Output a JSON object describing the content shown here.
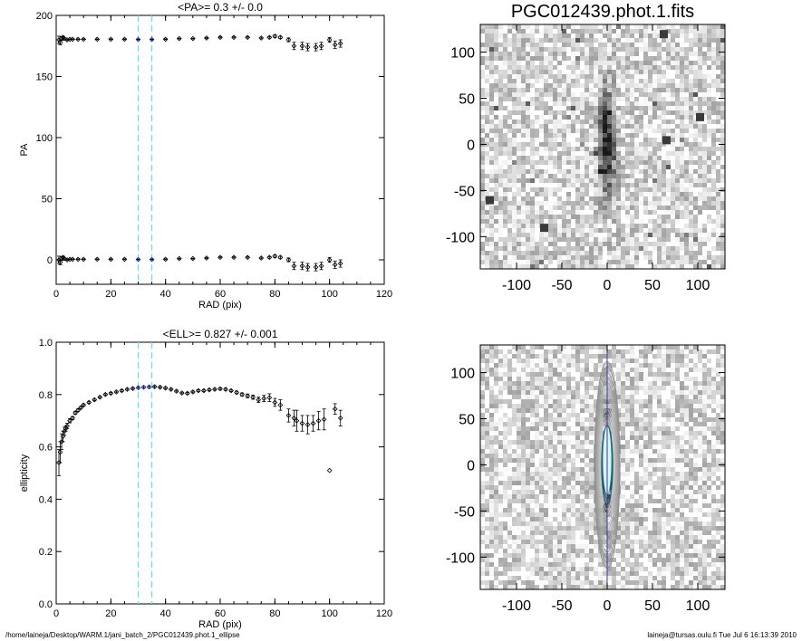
{
  "chart_data": [
    {
      "type": "scatter",
      "title": "<PA>=   0.3 +/-   0.0",
      "xlabel": "RAD (pix)",
      "ylabel": "PA",
      "xlim": [
        0,
        120
      ],
      "ylim": [
        -20,
        200
      ],
      "xticks": [
        0,
        20,
        40,
        60,
        80,
        100,
        120
      ],
      "yticks": [
        0,
        50,
        100,
        150,
        200
      ],
      "grid": false,
      "vlines": [
        30,
        35
      ],
      "vline_color": "#66e0e0",
      "fit_range_color": "#1a1aa8",
      "series": [
        {
          "x": [
            1,
            1.5,
            2,
            2.5,
            3,
            4,
            5,
            6,
            8,
            10,
            15,
            20,
            25,
            30,
            35,
            40,
            45,
            50,
            55,
            60,
            65,
            70,
            75,
            78,
            80,
            82,
            85,
            87,
            90,
            92,
            95,
            97,
            100,
            102,
            104
          ],
          "values": [
            180,
            178,
            181,
            182,
            181,
            180,
            180.5,
            180.5,
            180.5,
            180.5,
            180.5,
            180.5,
            180.5,
            180.3,
            180.3,
            180.5,
            181,
            181,
            181.5,
            182,
            182,
            182,
            181.5,
            182,
            183,
            182,
            180,
            175,
            175,
            174,
            174,
            175,
            180,
            176,
            177
          ],
          "errors": [
            3,
            2,
            1.5,
            1,
            0.5,
            0.4,
            0.3,
            0.3,
            0.3,
            0.3,
            0.3,
            0.3,
            0.3,
            0.3,
            0.3,
            0.3,
            0.3,
            0.3,
            0.3,
            0.4,
            0.4,
            0.5,
            0.6,
            0.7,
            1,
            1,
            1.5,
            3,
            3,
            3,
            3,
            3,
            2,
            3,
            3
          ]
        },
        {
          "x": [
            1,
            1.5,
            2,
            2.5,
            3,
            4,
            5,
            6,
            8,
            10,
            15,
            20,
            25,
            30,
            35,
            40,
            45,
            50,
            55,
            60,
            65,
            70,
            75,
            78,
            80,
            82,
            85,
            87,
            90,
            92,
            95,
            97,
            100,
            102,
            104
          ],
          "values": [
            0,
            -2,
            1,
            2,
            1,
            0,
            0.5,
            0.5,
            0.5,
            0.5,
            0.5,
            0.5,
            0.5,
            0.3,
            0.3,
            0.5,
            1,
            1,
            1.5,
            2,
            2,
            2,
            1.5,
            2,
            3,
            2,
            0,
            -5,
            -5,
            -6,
            -6,
            -5,
            0,
            -4,
            -3
          ],
          "errors": [
            3,
            2,
            1.5,
            1,
            0.5,
            0.4,
            0.3,
            0.3,
            0.3,
            0.3,
            0.3,
            0.3,
            0.3,
            0.3,
            0.3,
            0.3,
            0.3,
            0.3,
            0.3,
            0.4,
            0.4,
            0.5,
            0.6,
            0.7,
            1,
            1,
            1.5,
            3,
            3,
            3,
            3,
            3,
            2,
            3,
            3
          ]
        }
      ]
    },
    {
      "type": "scatter",
      "title": "<ELL>= 0.827 +/-  0.001",
      "xlabel": "RAD (pix)",
      "ylabel": "ellipticity",
      "xlim": [
        0,
        120
      ],
      "ylim": [
        0,
        1.0
      ],
      "xticks": [
        0,
        20,
        40,
        60,
        80,
        100,
        120
      ],
      "yticks": [
        "0.0",
        "0.2",
        "0.4",
        "0.6",
        "0.8",
        "1.0"
      ],
      "grid": false,
      "vlines": [
        30,
        35
      ],
      "vline_color": "#66e0e0",
      "fit_range_color": "#1a1aa8",
      "series": [
        {
          "x": [
            1,
            1.5,
            2,
            2.5,
            3,
            3.5,
            4,
            5,
            6,
            7,
            8,
            9,
            10,
            12,
            14,
            16,
            18,
            20,
            22,
            24,
            26,
            28,
            30,
            32,
            34,
            36,
            38,
            40,
            42,
            44,
            46,
            48,
            50,
            52,
            54,
            56,
            58,
            60,
            62,
            64,
            66,
            68,
            70,
            72,
            74,
            76,
            78,
            80,
            82,
            85,
            87,
            88,
            90,
            92,
            94,
            96,
            98,
            100,
            102,
            104
          ],
          "values": [
            0.54,
            0.58,
            0.62,
            0.64,
            0.66,
            0.67,
            0.68,
            0.7,
            0.71,
            0.73,
            0.74,
            0.75,
            0.76,
            0.77,
            0.78,
            0.79,
            0.8,
            0.805,
            0.81,
            0.815,
            0.82,
            0.823,
            0.826,
            0.828,
            0.829,
            0.83,
            0.828,
            0.825,
            0.82,
            0.813,
            0.806,
            0.805,
            0.81,
            0.815,
            0.815,
            0.818,
            0.82,
            0.822,
            0.82,
            0.815,
            0.808,
            0.8,
            0.795,
            0.79,
            0.78,
            0.785,
            0.788,
            0.77,
            0.76,
            0.72,
            0.71,
            0.7,
            0.69,
            0.685,
            0.69,
            0.7,
            0.705,
            0.51,
            0.745,
            0.71
          ],
          "errors": [
            0.05,
            0.04,
            0.03,
            0.02,
            0.015,
            0.01,
            0.01,
            0.008,
            0.006,
            0.005,
            0.005,
            0.004,
            0.004,
            0.003,
            0.003,
            0.003,
            0.003,
            0.003,
            0.003,
            0.003,
            0.003,
            0.003,
            0.003,
            0.003,
            0.003,
            0.003,
            0.003,
            0.003,
            0.003,
            0.003,
            0.003,
            0.003,
            0.003,
            0.003,
            0.003,
            0.003,
            0.003,
            0.003,
            0.004,
            0.004,
            0.005,
            0.006,
            0.007,
            0.008,
            0.01,
            0.012,
            0.015,
            0.015,
            0.02,
            0.025,
            0.03,
            0.04,
            0.03,
            0.035,
            0.03,
            0.035,
            0.04,
            0.0,
            0.02,
            0.03
          ]
        }
      ]
    },
    {
      "type": "heatmap",
      "title": "PGC012439.phot.1.fits",
      "xlim": [
        -140,
        130
      ],
      "ylim": [
        -135,
        130
      ],
      "xticks": [
        "-100",
        "-50",
        "0",
        "50",
        "100"
      ],
      "yticks": [
        "-100",
        "-50",
        "0",
        "50",
        "100"
      ],
      "colormap": "grayscale-inverted",
      "galaxy": {
        "center": [
          0,
          0
        ],
        "orientation": "vertical",
        "peak": "center"
      }
    },
    {
      "type": "heatmap",
      "title": "",
      "xlim": [
        -140,
        130
      ],
      "ylim": [
        -135,
        130
      ],
      "xticks": [
        "-100",
        "-50",
        "0",
        "50",
        "100"
      ],
      "yticks": [
        "-100",
        "-50",
        "0",
        "50",
        "100"
      ],
      "colormap": "grayscale-inverted",
      "overlay": "ellipse-contours",
      "major_axis_line_color": "#3a3aa8"
    }
  ],
  "footer": {
    "left": "/home/laineja/Desktop/WARM.1/jani_batch_2/PGC012439.phot.1_ellipse",
    "right": "laineja@tursas.oulu.fi  Tue Jul  6 16:13:39 2010"
  }
}
